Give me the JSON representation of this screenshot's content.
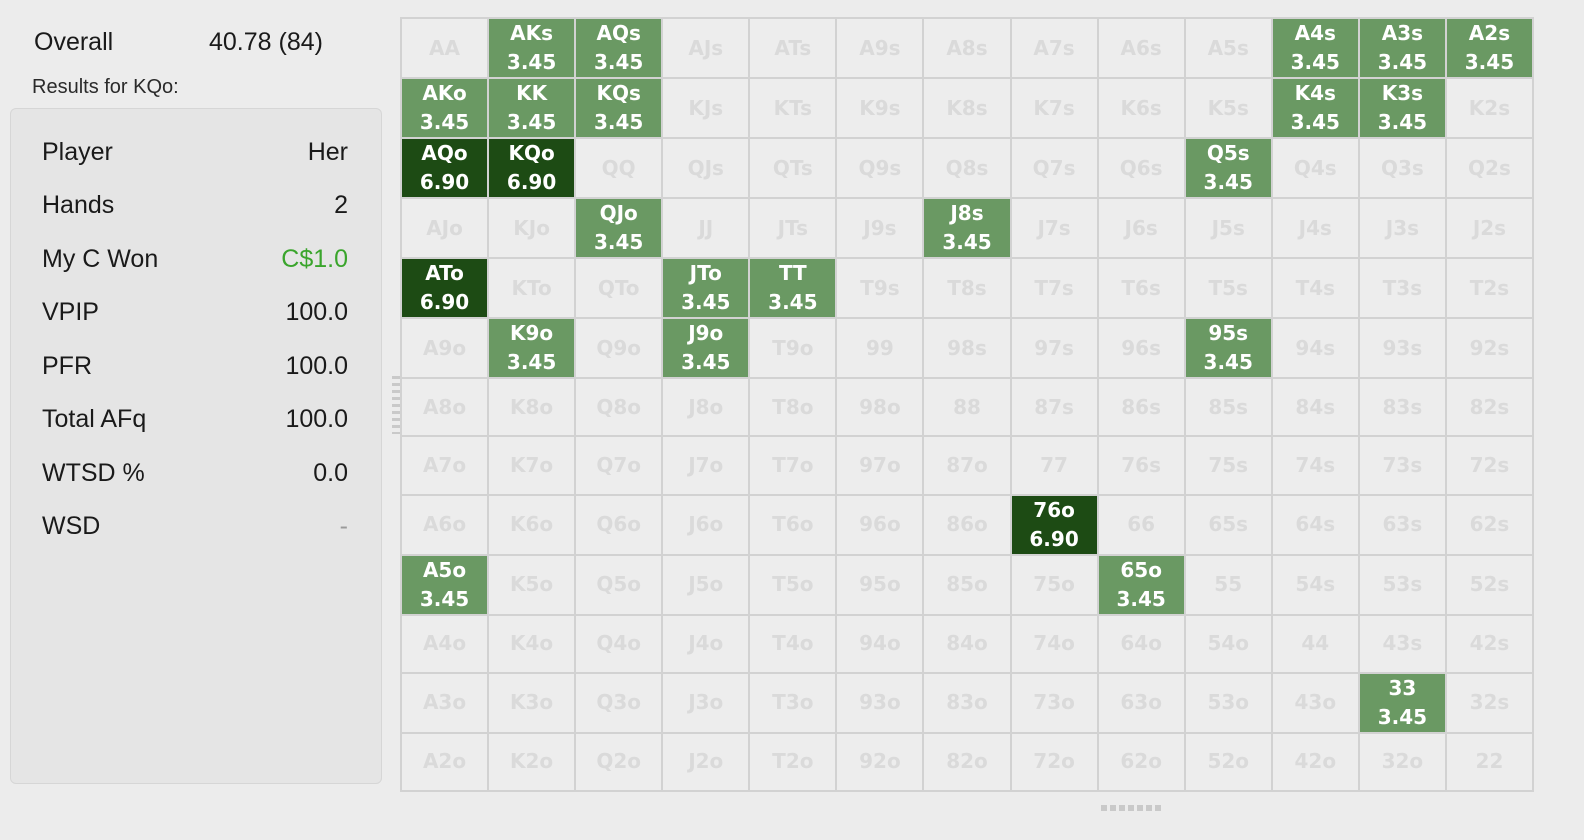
{
  "overall": {
    "label": "Overall",
    "value": "40.78 (84)"
  },
  "results_label": "Results for KQo:",
  "stats": [
    {
      "label": "Player",
      "value": "Her",
      "style": ""
    },
    {
      "label": "Hands",
      "value": "2",
      "style": ""
    },
    {
      "label": "My C Won",
      "value": "C$1.0",
      "style": "green"
    },
    {
      "label": "VPIP",
      "value": "100.0",
      "style": ""
    },
    {
      "label": "PFR",
      "value": "100.0",
      "style": ""
    },
    {
      "label": "Total AFq",
      "value": "100.0",
      "style": ""
    },
    {
      "label": "WTSD %",
      "value": "0.0",
      "style": ""
    },
    {
      "label": "WSD",
      "value": "-",
      "style": "dim"
    }
  ],
  "colors": {
    "medium": "#6a9963",
    "dark": "#1d4b14",
    "empty": "#ededed",
    "empty_text": "#dadada",
    "won": "#3aa52c"
  },
  "grid": {
    "ranks": [
      "A",
      "K",
      "Q",
      "J",
      "T",
      "9",
      "8",
      "7",
      "6",
      "5",
      "4",
      "3",
      "2"
    ],
    "highlights": {
      "AKs": "3.45",
      "AQs": "3.45",
      "A4s": "3.45",
      "A3s": "3.45",
      "A2s": "3.45",
      "AKo": "3.45",
      "KK": "3.45",
      "KQs": "3.45",
      "K4s": "3.45",
      "K3s": "3.45",
      "AQo": "6.90",
      "KQo": "6.90",
      "Q5s": "3.45",
      "QJo": "3.45",
      "J8s": "3.45",
      "ATo": "6.90",
      "JTo": "3.45",
      "TT": "3.45",
      "K9o": "3.45",
      "J9o": "3.45",
      "95s": "3.45",
      "76o": "6.90",
      "A5o": "3.45",
      "65o": "3.45",
      "33": "3.45"
    }
  }
}
